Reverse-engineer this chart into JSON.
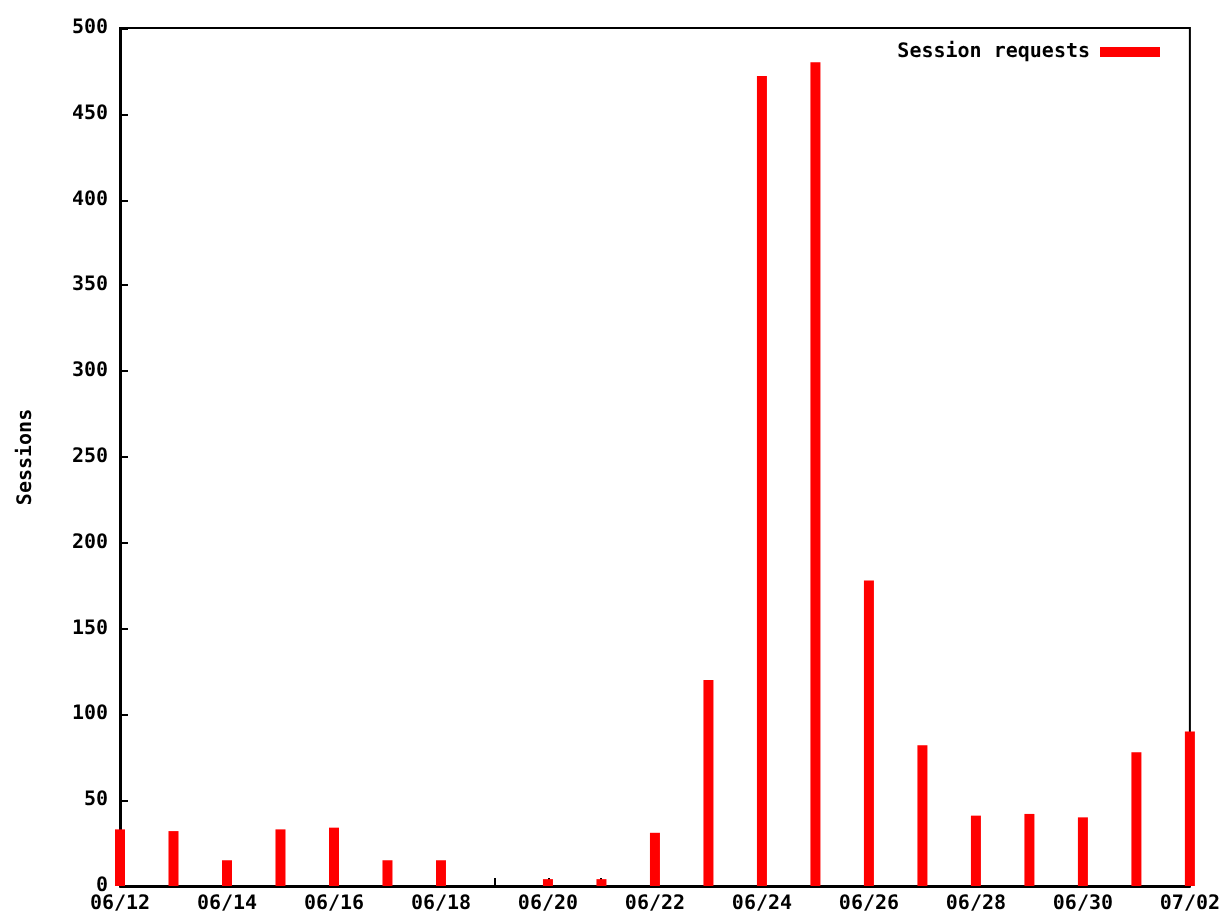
{
  "chart_data": {
    "type": "bar",
    "ylabel": "Sessions",
    "categories": [
      "06/12",
      null,
      "06/14",
      null,
      "06/16",
      null,
      "06/18",
      null,
      "06/20",
      null,
      "06/22",
      null,
      "06/24",
      null,
      "06/26",
      null,
      "06/28",
      null,
      "06/30",
      null,
      "07/02"
    ],
    "series": [
      {
        "name": "Session requests",
        "color": "#ff0000",
        "values": [
          33,
          32,
          15,
          33,
          34,
          15,
          15,
          0,
          4,
          4,
          31,
          120,
          472,
          480,
          178,
          82,
          41,
          42,
          40,
          78,
          90
        ]
      }
    ],
    "ylim": [
      0,
      500
    ],
    "yticks": [
      0,
      50,
      100,
      150,
      200,
      250,
      300,
      350,
      400,
      450,
      500
    ],
    "legend": "top right",
    "grid": false
  }
}
